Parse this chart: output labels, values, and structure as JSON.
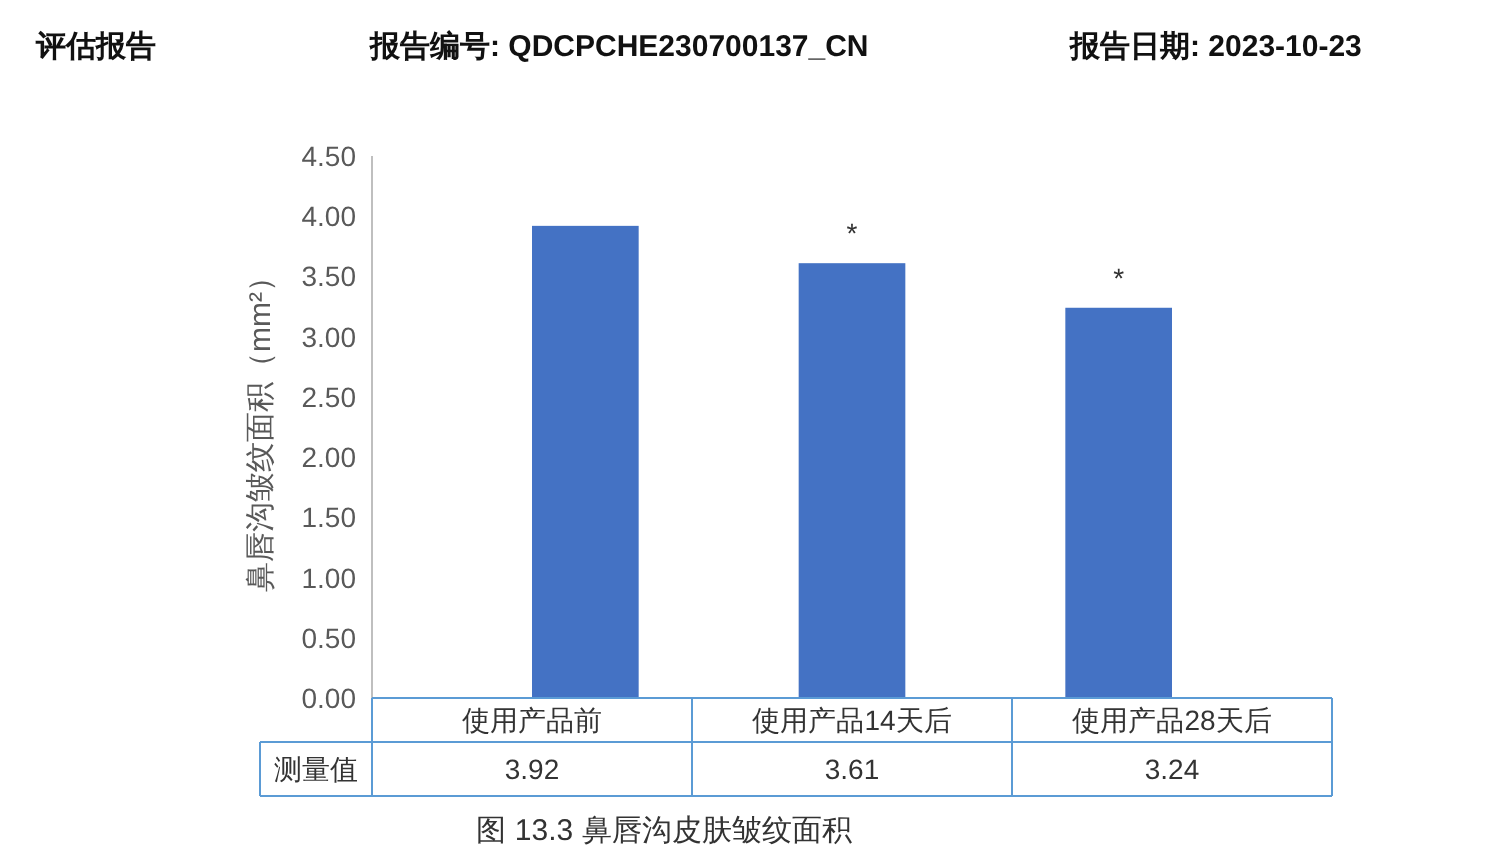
{
  "chart_data": {
    "type": "bar",
    "title": "图 13.3 鼻唇沟皮肤皱纹面积",
    "ylabel": "鼻唇沟皱纹面积（mm²）",
    "categories": [
      "使用产品前",
      "使用产品14天后",
      "使用产品28天后"
    ],
    "values": [
      3.92,
      3.61,
      3.24
    ],
    "color": "#4472c4",
    "ylim": [
      0,
      4.5
    ],
    "yticks": [
      {
        "value": 0,
        "label": "0.00"
      },
      {
        "value": 0.5,
        "label": "0.50"
      },
      {
        "value": 1,
        "label": "1.00"
      },
      {
        "value": 1.5,
        "label": "1.50"
      },
      {
        "value": 2,
        "label": "2.00"
      },
      {
        "value": 2.5,
        "label": "2.50"
      },
      {
        "value": 3,
        "label": "3.00"
      },
      {
        "value": 3.5,
        "label": "3.50"
      },
      {
        "value": 4,
        "label": "4.00"
      },
      {
        "value": 4.5,
        "label": "4.50"
      }
    ],
    "grid": false,
    "data_labels": true,
    "annotations": [
      "评估报告",
      "报告编号: QDCPCHE230700137_CN",
      "报告日期: 2023-10-23",
      "测量值",
      {
        "text": "*",
        "x": "使用产品14天后",
        "y": 3.61
      },
      {
        "text": "*",
        "x": "使用产品28天后",
        "y": 3.24
      }
    ]
  }
}
